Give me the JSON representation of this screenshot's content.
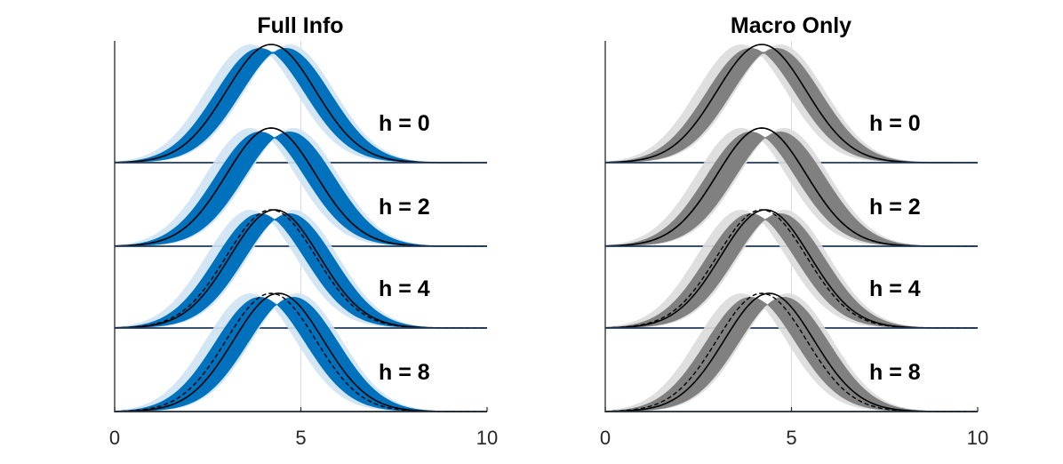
{
  "chart_data": [
    {
      "type": "area",
      "title": "Full Info",
      "xlabel": "",
      "ylabel": "",
      "xlim": [
        0,
        10
      ],
      "xticks": [
        0,
        5,
        10
      ],
      "xtick_labels": [
        "0",
        "5",
        "10"
      ],
      "band_color": "#0072BD",
      "band_faint_color": "#CFE3F3",
      "grid": "vertical line at x = 5",
      "ridges": [
        {
          "label": "h = 0",
          "reference_peak_x": 4.2,
          "band_peak_x": [
            3.9,
            4.6
          ],
          "dashed_reference": false
        },
        {
          "label": "h = 2",
          "reference_peak_x": 4.2,
          "band_peak_x": [
            3.9,
            4.7
          ],
          "dashed_reference": true
        },
        {
          "label": "h = 4",
          "reference_peak_x": 4.3,
          "band_peak_x": [
            3.9,
            4.7
          ],
          "dashed_reference": true
        },
        {
          "label": "h = 8",
          "reference_peak_x": 4.4,
          "band_peak_x": [
            3.9,
            4.8
          ],
          "dashed_reference": true
        }
      ]
    },
    {
      "type": "area",
      "title": "Macro Only",
      "xlabel": "",
      "ylabel": "",
      "xlim": [
        0,
        10
      ],
      "xticks": [
        0,
        5,
        10
      ],
      "xtick_labels": [
        "0",
        "5",
        "10"
      ],
      "band_color": "#808080",
      "band_faint_color": "#DCDCDC",
      "grid": "vertical line at x = 5",
      "ridges": [
        {
          "label": "h = 0",
          "reference_peak_x": 4.2,
          "band_peak_x": [
            3.9,
            4.6
          ],
          "dashed_reference": false
        },
        {
          "label": "h = 2",
          "reference_peak_x": 4.2,
          "band_peak_x": [
            3.9,
            4.7
          ],
          "dashed_reference": true
        },
        {
          "label": "h = 4",
          "reference_peak_x": 4.3,
          "band_peak_x": [
            3.9,
            4.7
          ],
          "dashed_reference": true
        },
        {
          "label": "h = 8",
          "reference_peak_x": 4.4,
          "band_peak_x": [
            3.9,
            4.8
          ],
          "dashed_reference": true
        }
      ]
    }
  ]
}
